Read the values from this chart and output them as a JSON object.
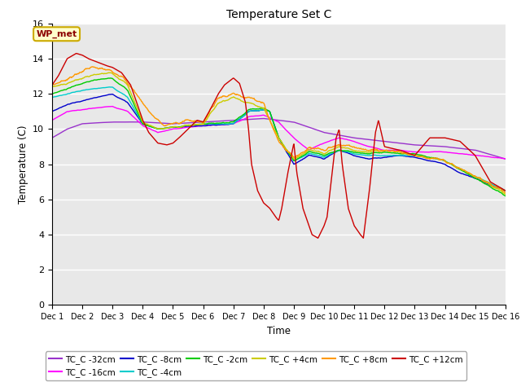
{
  "title": "Temperature Set C",
  "xlabel": "Time",
  "ylabel": "Temperature (C)",
  "xlim": [
    0,
    15
  ],
  "ylim": [
    0,
    16
  ],
  "yticks": [
    0,
    2,
    4,
    6,
    8,
    10,
    12,
    14,
    16
  ],
  "xtick_labels": [
    "Dec 1",
    "Dec 2",
    "Dec 3",
    "Dec 4",
    "Dec 5",
    "Dec 6",
    "Dec 7",
    "Dec 8",
    "Dec 9",
    "Dec 10",
    "Dec 11",
    "Dec 12",
    "Dec 13",
    "Dec 14",
    "Dec 15",
    "Dec 16"
  ],
  "background_color": "#e8e8e8",
  "series": [
    {
      "label": "TC_C -32cm",
      "color": "#9933cc"
    },
    {
      "label": "TC_C -16cm",
      "color": "#ff00ff"
    },
    {
      "label": "TC_C -8cm",
      "color": "#0000cc"
    },
    {
      "label": "TC_C -4cm",
      "color": "#00cccc"
    },
    {
      "label": "TC_C -2cm",
      "color": "#00cc00"
    },
    {
      "label": "TC_C +4cm",
      "color": "#cccc00"
    },
    {
      "label": "TC_C +8cm",
      "color": "#ff9900"
    },
    {
      "label": "TC_C +12cm",
      "color": "#cc0000"
    }
  ],
  "annotation_text": "WP_met",
  "annotation_color": "#8b0000",
  "annotation_bg": "#ffffcc",
  "annotation_edge": "#ccaa00"
}
